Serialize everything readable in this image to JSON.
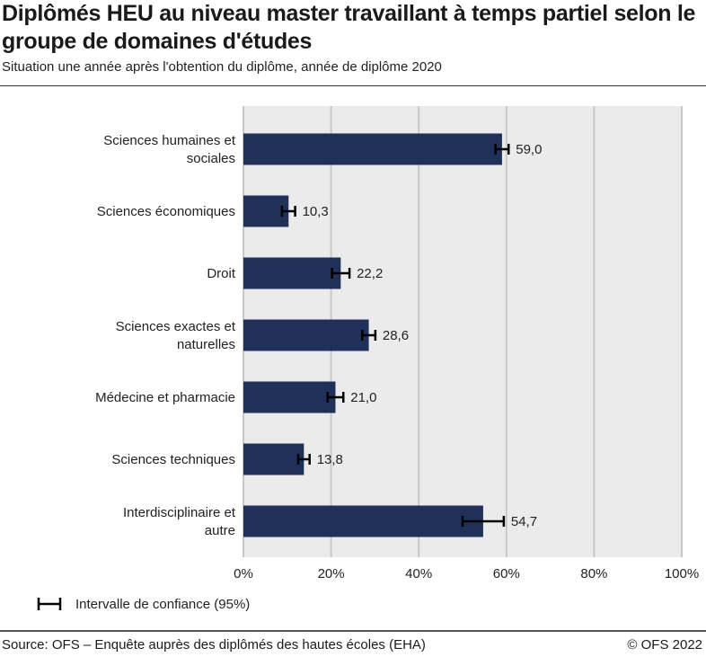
{
  "title": "Diplômés HEU au niveau master travaillant à temps partiel selon le groupe de domaines d'études",
  "subtitle": "Situation une année après l'obtention du diplôme, année de diplôme 2020",
  "source": "Source: OFS – Enquête auprès des diplômés des hautes écoles (EHA)",
  "copyright": "© OFS 2022",
  "chart_data": {
    "type": "bar",
    "orientation": "horizontal",
    "categories": [
      [
        "Sciences humaines et",
        "sociales"
      ],
      [
        "Sciences économiques"
      ],
      [
        "Droit"
      ],
      [
        "Sciences exactes et",
        "naturelles"
      ],
      [
        "Médecine et pharmacie"
      ],
      [
        "Sciences techniques"
      ],
      [
        "Interdisciplinaire et",
        "autre"
      ]
    ],
    "values": [
      59.0,
      10.3,
      22.2,
      28.6,
      21.0,
      13.8,
      54.7
    ],
    "data_labels": [
      "59,0",
      "10,3",
      "22,2",
      "28,6",
      "21,0",
      "13,8",
      "54,7"
    ],
    "ci_half_width": [
      1.5,
      1.5,
      2.0,
      1.5,
      1.8,
      1.3,
      4.7
    ],
    "xlim": [
      0,
      100
    ],
    "xticks": [
      "0%",
      "20%",
      "40%",
      "60%",
      "80%",
      "100%"
    ],
    "grid": true,
    "legend": {
      "label": "Intervalle de confiance (95%)",
      "placement": "bottom-left"
    },
    "colors": {
      "bar": "#1f3158",
      "plot_bg": "#ebebeb",
      "grid": "#c8c8c8",
      "error_bar": "#000000"
    }
  }
}
